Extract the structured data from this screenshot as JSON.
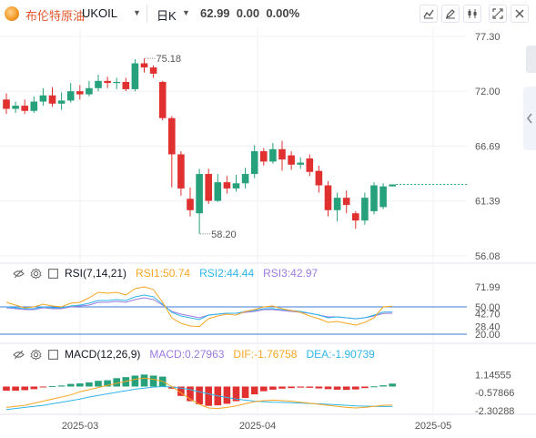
{
  "symbol": {
    "name": "布伦特原油",
    "code": "UKOIL",
    "period": "日K",
    "last": "62.99",
    "change": "0.00",
    "change_pct": "0.00%"
  },
  "toolbar_icons": [
    "line-chart-icon",
    "draw-icon",
    "indicator-icon",
    "fullscreen-icon",
    "close-icon"
  ],
  "main_axis": {
    "ticks": [
      "77.30",
      "72.00",
      "66.69",
      "61.39",
      "56.08"
    ],
    "tick_values": [
      77.3,
      72.0,
      66.69,
      61.39,
      56.08
    ],
    "annotations": {
      "high": "75.18",
      "low": "58.20"
    }
  },
  "rsi": {
    "title": "RSI(7,14,21)",
    "items": [
      {
        "label": "RSI1:50.74",
        "color": "#f5a623"
      },
      {
        "label": "RSI2:44.44",
        "color": "#2fb5e8"
      },
      {
        "label": "RSI3:42.97",
        "color": "#9b7be0"
      }
    ],
    "ticks": [
      "71.99",
      "50.00",
      "42.70",
      "20.00",
      "28.40"
    ],
    "tick_values": [
      71.99,
      50.0,
      42.7,
      20.0,
      28.4
    ]
  },
  "macd": {
    "title": "MACD(12,26,9)",
    "items": [
      {
        "label": "MACD:0.27963",
        "color": "#9b7be0"
      },
      {
        "label": "DIF:-1.76758",
        "color": "#f5a623"
      },
      {
        "label": "DEA:-1.90739",
        "color": "#2fb5e8"
      }
    ],
    "ticks": [
      "1.14555",
      "-0.57866",
      "-2.30288"
    ],
    "tick_values": [
      1.14555,
      -0.57866,
      -2.30288
    ]
  },
  "x_axis": {
    "labels": [
      "2025-03",
      "2025-04",
      "2025-05"
    ]
  },
  "colors": {
    "up": "#26a17b",
    "down": "#e03030",
    "grid": "#eef0f4",
    "line": "#3b7dd8"
  },
  "chart_data": {
    "type": "candlestick",
    "candles": [
      [
        71.2,
        70.3,
        71.8,
        69.8
      ],
      [
        70.3,
        70.6,
        71.0,
        69.9
      ],
      [
        70.6,
        70.1,
        71.2,
        69.8
      ],
      [
        70.1,
        71.0,
        71.5,
        69.9
      ],
      [
        71.0,
        71.6,
        72.3,
        70.6
      ],
      [
        71.6,
        70.8,
        72.4,
        70.5
      ],
      [
        70.8,
        71.1,
        71.9,
        70.2
      ],
      [
        71.1,
        72.0,
        72.8,
        70.9
      ],
      [
        72.0,
        71.7,
        72.6,
        71.2
      ],
      [
        71.7,
        72.3,
        73.0,
        71.5
      ],
      [
        72.3,
        73.0,
        73.6,
        72.0
      ],
      [
        73.0,
        72.8,
        73.4,
        72.3
      ],
      [
        72.8,
        72.9,
        73.3,
        72.2
      ],
      [
        72.9,
        72.2,
        73.3,
        72.0
      ],
      [
        72.2,
        74.7,
        75.1,
        72.0
      ],
      [
        74.7,
        74.3,
        75.18,
        73.8
      ],
      [
        74.3,
        73.7,
        74.5,
        73.3
      ],
      [
        72.9,
        69.4,
        73.0,
        69.2
      ],
      [
        69.4,
        65.9,
        69.6,
        62.7
      ],
      [
        65.9,
        62.6,
        66.2,
        61.9
      ],
      [
        61.6,
        60.5,
        62.7,
        59.9
      ],
      [
        60.2,
        64.0,
        64.5,
        58.2
      ],
      [
        64.0,
        61.4,
        64.5,
        61.1
      ],
      [
        61.4,
        63.2,
        64.0,
        61.3
      ],
      [
        63.2,
        62.6,
        63.8,
        62.1
      ],
      [
        62.6,
        63.1,
        63.9,
        62.3
      ],
      [
        63.1,
        64.0,
        64.6,
        62.6
      ],
      [
        64.0,
        66.2,
        66.8,
        63.6
      ],
      [
        66.2,
        65.2,
        66.5,
        64.8
      ],
      [
        65.2,
        66.4,
        67.0,
        65.0
      ],
      [
        66.4,
        65.4,
        67.2,
        64.3
      ],
      [
        65.8,
        64.9,
        66.2,
        64.4
      ],
      [
        64.9,
        65.1,
        65.6,
        64.5
      ],
      [
        65.5,
        64.2,
        65.9,
        63.8
      ],
      [
        64.3,
        62.9,
        64.8,
        62.2
      ],
      [
        62.9,
        60.5,
        63.3,
        59.9
      ],
      [
        60.5,
        61.7,
        62.2,
        59.4
      ],
      [
        61.7,
        61.0,
        62.4,
        60.2
      ],
      [
        60.2,
        59.5,
        60.4,
        58.7
      ],
      [
        59.5,
        61.7,
        62.2,
        59.1
      ],
      [
        60.4,
        62.9,
        63.2,
        60.1
      ],
      [
        60.8,
        62.8,
        63.1,
        60.6
      ],
      [
        62.8,
        62.99,
        63.0,
        62.8
      ]
    ],
    "rsi1": [
      55,
      52,
      49,
      50,
      53,
      51,
      50,
      54,
      55,
      60,
      66,
      65,
      66,
      63,
      70,
      71.99,
      69,
      55,
      38,
      32,
      29,
      28.4,
      37,
      40,
      42,
      41,
      45,
      47,
      50,
      51,
      48,
      46,
      44,
      40,
      37,
      33,
      34,
      32,
      30,
      33,
      38,
      50,
      50.74
    ],
    "rsi2": [
      50,
      49,
      48,
      48,
      50,
      49,
      49,
      51,
      52,
      54,
      57,
      57,
      58,
      57,
      61,
      63,
      61,
      53,
      44,
      40,
      38,
      36,
      41,
      42,
      43,
      43,
      45,
      46,
      48,
      48,
      47,
      46,
      45,
      43,
      41,
      38,
      39,
      38,
      37,
      38,
      41,
      44.2,
      44.44
    ],
    "rsi3": [
      49,
      48,
      47,
      47,
      49,
      48,
      48,
      50,
      51,
      52,
      55,
      55,
      56,
      55,
      58,
      60,
      58,
      52,
      45,
      42,
      40,
      38,
      41,
      42,
      43,
      43,
      44,
      45,
      47,
      47,
      46,
      45,
      44,
      43,
      41,
      39,
      39,
      38,
      37,
      38,
      40,
      42.7,
      42.97
    ],
    "macd_hist": [
      -0.4,
      -0.4,
      -0.35,
      -0.25,
      -0.05,
      0.05,
      0.1,
      0.25,
      0.3,
      0.4,
      0.55,
      0.6,
      0.8,
      0.9,
      1.05,
      1.14555,
      1.05,
      0.95,
      -0.2,
      -0.9,
      -1.4,
      -1.7,
      -1.85,
      -1.8,
      -1.65,
      -1.4,
      -1.1,
      -0.75,
      -0.45,
      -0.3,
      -0.2,
      -0.15,
      -0.1,
      -0.12,
      -0.18,
      -0.25,
      -0.3,
      -0.32,
      -0.28,
      -0.15,
      0.02,
      0.12,
      0.27963
    ],
    "dif": [
      -2.0,
      -1.9,
      -1.8,
      -1.6,
      -1.4,
      -1.2,
      -1.0,
      -0.8,
      -0.5,
      -0.3,
      -0.1,
      0.1,
      0.3,
      0.5,
      0.7,
      0.8,
      0.7,
      0.5,
      0.0,
      -0.6,
      -1.2,
      -1.7,
      -2.05,
      -2.1,
      -2.0,
      -1.85,
      -1.65,
      -1.45,
      -1.35,
      -1.3,
      -1.35,
      -1.4,
      -1.5,
      -1.6,
      -1.7,
      -1.8,
      -1.9,
      -2.0,
      -2.05,
      -2.0,
      -1.9,
      -1.8,
      -1.76758
    ],
    "dea": [
      -2.2,
      -2.1,
      -2.0,
      -1.9,
      -1.8,
      -1.65,
      -1.5,
      -1.35,
      -1.2,
      -1.0,
      -0.85,
      -0.7,
      -0.55,
      -0.4,
      -0.25,
      -0.15,
      -0.05,
      0.0,
      -0.05,
      -0.15,
      -0.3,
      -0.5,
      -0.7,
      -0.9,
      -1.05,
      -1.2,
      -1.3,
      -1.4,
      -1.45,
      -1.5,
      -1.52,
      -1.55,
      -1.58,
      -1.62,
      -1.66,
      -1.7,
      -1.75,
      -1.8,
      -1.85,
      -1.88,
      -1.9,
      -1.91,
      -1.90739
    ]
  }
}
